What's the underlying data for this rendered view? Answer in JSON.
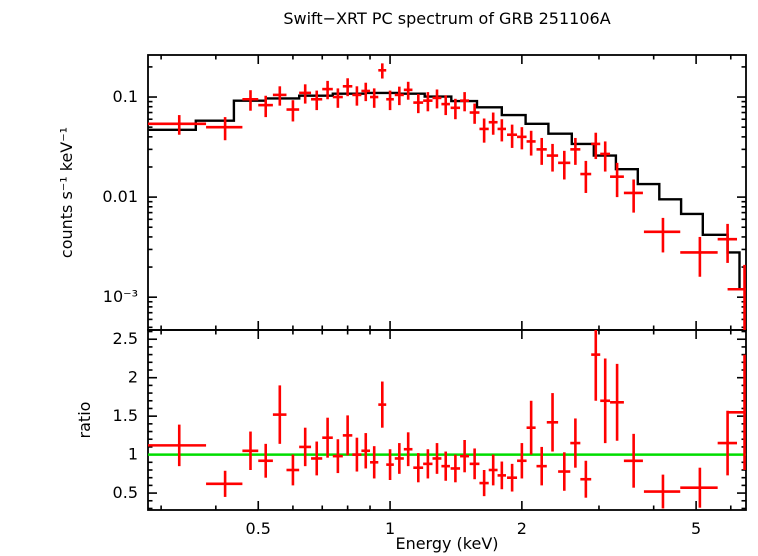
{
  "title": "Swift−XRT PC spectrum of GRB 251106A",
  "colors": {
    "data": "#ff0000",
    "model": "#000000",
    "reference": "#00dd00",
    "frame": "#000000",
    "background": "#ffffff",
    "text": "#000000"
  },
  "chart_data": {
    "type": "scatter",
    "title": "Swift−XRT PC spectrum of GRB 251106A",
    "xlabel": "Energy (keV)",
    "xscale": "log",
    "xlim": [
      0.28,
      6.5
    ],
    "x_ticks": [
      0.5,
      1,
      2,
      5
    ],
    "x_tick_labels": [
      "0.5",
      "1",
      "2",
      "5"
    ],
    "grid": false,
    "legend": false,
    "panels": [
      {
        "name": "spectrum",
        "ylabel": "counts s⁻¹ keV⁻¹",
        "yscale": "log",
        "ylim": [
          0.00047,
          0.263
        ],
        "y_ticks": [
          0.1,
          0.01,
          0.001
        ],
        "y_tick_labels": [
          "0.1",
          "0.01",
          "10⁻³"
        ]
      },
      {
        "name": "ratio",
        "ylabel": "ratio",
        "yscale": "linear",
        "ylim": [
          0.28,
          2.62
        ],
        "y_ticks": [
          0.5,
          1,
          1.5,
          2,
          2.5
        ],
        "y_tick_labels": [
          "0.5",
          "1",
          "1.5",
          "2",
          "2.5"
        ],
        "reference_line": 1.0
      }
    ],
    "series": [
      {
        "name": "spectrum-data",
        "style": "cross",
        "color": "#ff0000",
        "columns": [
          "energy_keV",
          "energy_err",
          "rate",
          "rate_err",
          "ratio",
          "ratio_err"
        ],
        "points": [
          [
            0.33,
            0.05,
            0.054,
            0.012,
            1.12,
            0.27
          ],
          [
            0.42,
            0.04,
            0.05,
            0.013,
            0.62,
            0.17
          ],
          [
            0.48,
            0.02,
            0.095,
            0.022,
            1.05,
            0.25
          ],
          [
            0.52,
            0.02,
            0.083,
            0.02,
            0.92,
            0.22
          ],
          [
            0.56,
            0.02,
            0.105,
            0.023,
            1.52,
            0.38
          ],
          [
            0.6,
            0.02,
            0.075,
            0.018,
            0.8,
            0.2
          ],
          [
            0.64,
            0.02,
            0.11,
            0.024,
            1.1,
            0.25
          ],
          [
            0.68,
            0.02,
            0.095,
            0.021,
            0.95,
            0.22
          ],
          [
            0.72,
            0.02,
            0.12,
            0.025,
            1.22,
            0.26
          ],
          [
            0.76,
            0.02,
            0.1,
            0.022,
            0.98,
            0.22
          ],
          [
            0.8,
            0.02,
            0.128,
            0.026,
            1.25,
            0.26
          ],
          [
            0.84,
            0.02,
            0.105,
            0.023,
            1.0,
            0.22
          ],
          [
            0.88,
            0.02,
            0.115,
            0.024,
            1.05,
            0.23
          ],
          [
            0.92,
            0.02,
            0.1,
            0.022,
            0.9,
            0.21
          ],
          [
            0.96,
            0.02,
            0.185,
            0.032,
            1.65,
            0.3
          ],
          [
            1.0,
            0.02,
            0.095,
            0.021,
            0.87,
            0.2
          ],
          [
            1.05,
            0.025,
            0.105,
            0.022,
            0.95,
            0.2
          ],
          [
            1.1,
            0.025,
            0.118,
            0.024,
            1.07,
            0.22
          ],
          [
            1.16,
            0.03,
            0.088,
            0.019,
            0.83,
            0.19
          ],
          [
            1.22,
            0.03,
            0.092,
            0.02,
            0.88,
            0.19
          ],
          [
            1.28,
            0.03,
            0.098,
            0.021,
            0.95,
            0.2
          ],
          [
            1.34,
            0.03,
            0.085,
            0.019,
            0.85,
            0.19
          ],
          [
            1.41,
            0.035,
            0.078,
            0.018,
            0.82,
            0.18
          ],
          [
            1.48,
            0.035,
            0.092,
            0.02,
            0.98,
            0.21
          ],
          [
            1.56,
            0.04,
            0.07,
            0.016,
            0.88,
            0.2
          ],
          [
            1.64,
            0.04,
            0.048,
            0.013,
            0.63,
            0.17
          ],
          [
            1.72,
            0.04,
            0.056,
            0.014,
            0.8,
            0.2
          ],
          [
            1.8,
            0.04,
            0.048,
            0.012,
            0.73,
            0.18
          ],
          [
            1.9,
            0.05,
            0.042,
            0.011,
            0.7,
            0.18
          ],
          [
            2.0,
            0.05,
            0.04,
            0.01,
            0.92,
            0.23
          ],
          [
            2.1,
            0.05,
            0.036,
            0.01,
            1.35,
            0.35
          ],
          [
            2.22,
            0.06,
            0.03,
            0.009,
            0.85,
            0.25
          ],
          [
            2.35,
            0.07,
            0.026,
            0.008,
            1.42,
            0.38
          ],
          [
            2.5,
            0.08,
            0.022,
            0.007,
            0.78,
            0.25
          ],
          [
            2.65,
            0.07,
            0.03,
            0.009,
            1.15,
            0.32
          ],
          [
            2.8,
            0.08,
            0.017,
            0.006,
            0.68,
            0.24
          ],
          [
            2.95,
            0.07,
            0.034,
            0.01,
            2.3,
            0.6
          ],
          [
            3.1,
            0.08,
            0.027,
            0.009,
            1.7,
            0.55
          ],
          [
            3.3,
            0.12,
            0.016,
            0.006,
            1.68,
            0.5
          ],
          [
            3.6,
            0.18,
            0.011,
            0.004,
            0.92,
            0.35
          ],
          [
            4.2,
            0.4,
            0.0045,
            0.0017,
            0.52,
            0.22
          ],
          [
            5.1,
            0.5,
            0.0028,
            0.0012,
            0.57,
            0.26
          ],
          [
            5.9,
            0.3,
            0.0038,
            0.0016,
            1.15,
            0.42
          ],
          [
            6.45,
            0.55,
            0.0012,
            0.0009,
            1.55,
            0.75
          ]
        ]
      },
      {
        "name": "model",
        "style": "step",
        "color": "#000000",
        "columns": [
          "e_lo",
          "e_hi",
          "value"
        ],
        "steps": [
          [
            0.28,
            0.36,
            0.047
          ],
          [
            0.36,
            0.44,
            0.058
          ],
          [
            0.44,
            0.52,
            0.092
          ],
          [
            0.52,
            0.62,
            0.097
          ],
          [
            0.62,
            0.74,
            0.103
          ],
          [
            0.74,
            0.88,
            0.108
          ],
          [
            0.88,
            1.04,
            0.11
          ],
          [
            1.04,
            1.2,
            0.108
          ],
          [
            1.2,
            1.38,
            0.101
          ],
          [
            1.38,
            1.58,
            0.091
          ],
          [
            1.58,
            1.8,
            0.079
          ],
          [
            1.8,
            2.04,
            0.066
          ],
          [
            2.04,
            2.3,
            0.054
          ],
          [
            2.3,
            2.6,
            0.043
          ],
          [
            2.6,
            2.92,
            0.034
          ],
          [
            2.92,
            3.28,
            0.026
          ],
          [
            3.28,
            3.68,
            0.019
          ],
          [
            3.68,
            4.12,
            0.0135
          ],
          [
            4.12,
            4.62,
            0.0095
          ],
          [
            4.62,
            5.18,
            0.0068
          ],
          [
            5.18,
            5.9,
            0.0042
          ],
          [
            5.9,
            6.28,
            0.0028
          ],
          [
            6.28,
            6.5,
            0.0012
          ]
        ]
      }
    ]
  }
}
